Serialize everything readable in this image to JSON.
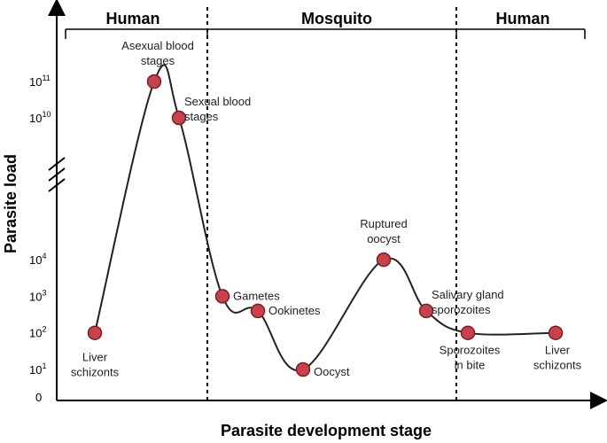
{
  "chart_data": {
    "type": "line",
    "title": "",
    "xlabel": "Parasite development stage",
    "ylabel": "Parasite load",
    "phases": [
      "Human",
      "Mosquito",
      "Human"
    ],
    "yticks": [
      {
        "base": "0",
        "exp": ""
      },
      {
        "base": "10",
        "exp": "1"
      },
      {
        "base": "10",
        "exp": "2"
      },
      {
        "base": "10",
        "exp": "3"
      },
      {
        "base": "10",
        "exp": "4"
      },
      {
        "base": "10",
        "exp": "10"
      },
      {
        "base": "10",
        "exp": "11"
      }
    ],
    "y_scale": "log (broken axis between 10^4 and 10^10)",
    "series": [
      {
        "points": [
          {
            "stage": 1,
            "load_log10": 2,
            "label": [
              "Liver",
              "schizonts"
            ]
          },
          {
            "stage": 2,
            "load_log10": 11,
            "label": [
              "Asexual blood",
              "stages"
            ]
          },
          {
            "stage": 3,
            "load_log10": 10,
            "label": [
              "Sexual blood",
              "stages"
            ]
          },
          {
            "stage": 4,
            "load_log10": 3,
            "label": [
              "Gametes"
            ]
          },
          {
            "stage": 5,
            "load_log10": 2.6,
            "label": [
              "Ookinetes"
            ]
          },
          {
            "stage": 6,
            "load_log10": 1,
            "label": [
              "Oocyst"
            ]
          },
          {
            "stage": 7,
            "load_log10": 4,
            "label": [
              "Ruptured",
              "oocyst"
            ]
          },
          {
            "stage": 8,
            "load_log10": 2.6,
            "label": [
              "Salivary gland",
              "sporozoites"
            ]
          },
          {
            "stage": 9,
            "load_log10": 2,
            "label": [
              "Sporozoites",
              "in bite"
            ]
          },
          {
            "stage": 10,
            "load_log10": 2,
            "label": [
              "Liver",
              "schizonts"
            ]
          }
        ]
      }
    ],
    "colors": {
      "point_fill": "#c8414b",
      "point_stroke": "#7a1f25",
      "line": "#222222"
    }
  }
}
